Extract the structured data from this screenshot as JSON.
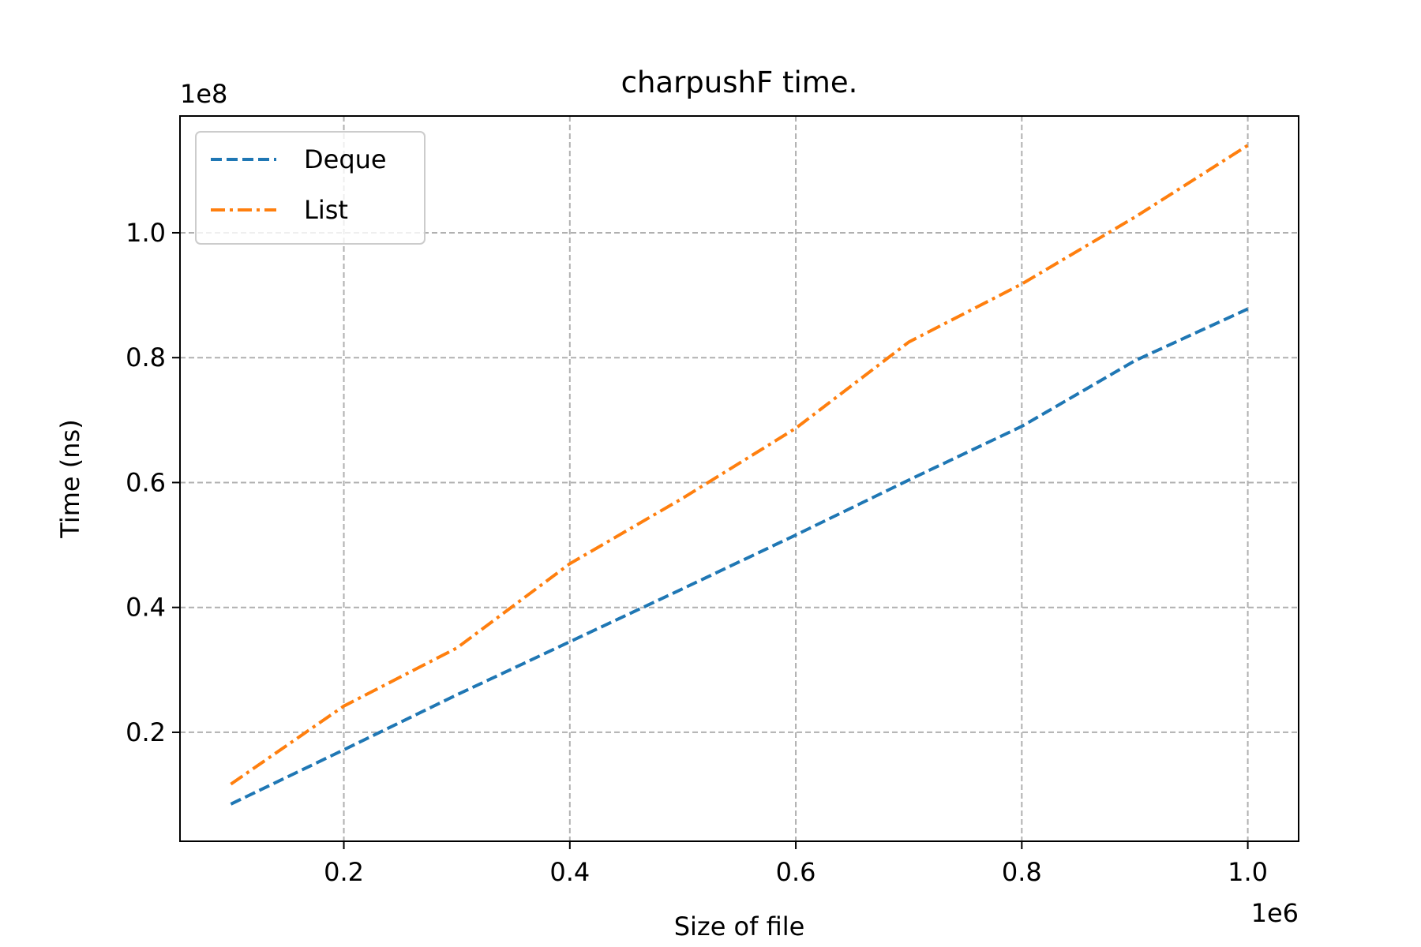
{
  "chart_data": {
    "type": "line",
    "title": "charpushF time.",
    "xlabel": "Size of file",
    "ylabel": "Time (ns)",
    "x_offset_label": "1e6",
    "y_offset_label": "1e8",
    "xlim": [
      0.055,
      1.045
    ],
    "ylim": [
      0.0255,
      1.187
    ],
    "xticks": [
      {
        "value": 0.2,
        "label": "0.2"
      },
      {
        "value": 0.4,
        "label": "0.4"
      },
      {
        "value": 0.6,
        "label": "0.6"
      },
      {
        "value": 0.8,
        "label": "0.8"
      },
      {
        "value": 1.0,
        "label": "1.0"
      }
    ],
    "yticks": [
      {
        "value": 0.2,
        "label": "0.2"
      },
      {
        "value": 0.4,
        "label": "0.4"
      },
      {
        "value": 0.6,
        "label": "0.6"
      },
      {
        "value": 0.8,
        "label": "0.8"
      },
      {
        "value": 1.0,
        "label": "1.0"
      }
    ],
    "grid": true,
    "legend_position": "top-left",
    "x": [
      0.1,
      0.2,
      0.3,
      0.4,
      0.5,
      0.6,
      0.7,
      0.8,
      0.9,
      1.0
    ],
    "series": [
      {
        "name": "Deque",
        "color": "#1f77b4",
        "linestyle": "dashed",
        "values": [
          0.085,
          0.172,
          0.26,
          0.345,
          0.43,
          0.516,
          0.604,
          0.69,
          0.795,
          0.878
        ]
      },
      {
        "name": "List",
        "color": "#ff7f0e",
        "linestyle": "dashdot",
        "values": [
          0.117,
          0.242,
          0.335,
          0.47,
          0.575,
          0.687,
          0.825,
          0.918,
          1.025,
          1.14
        ]
      }
    ]
  }
}
